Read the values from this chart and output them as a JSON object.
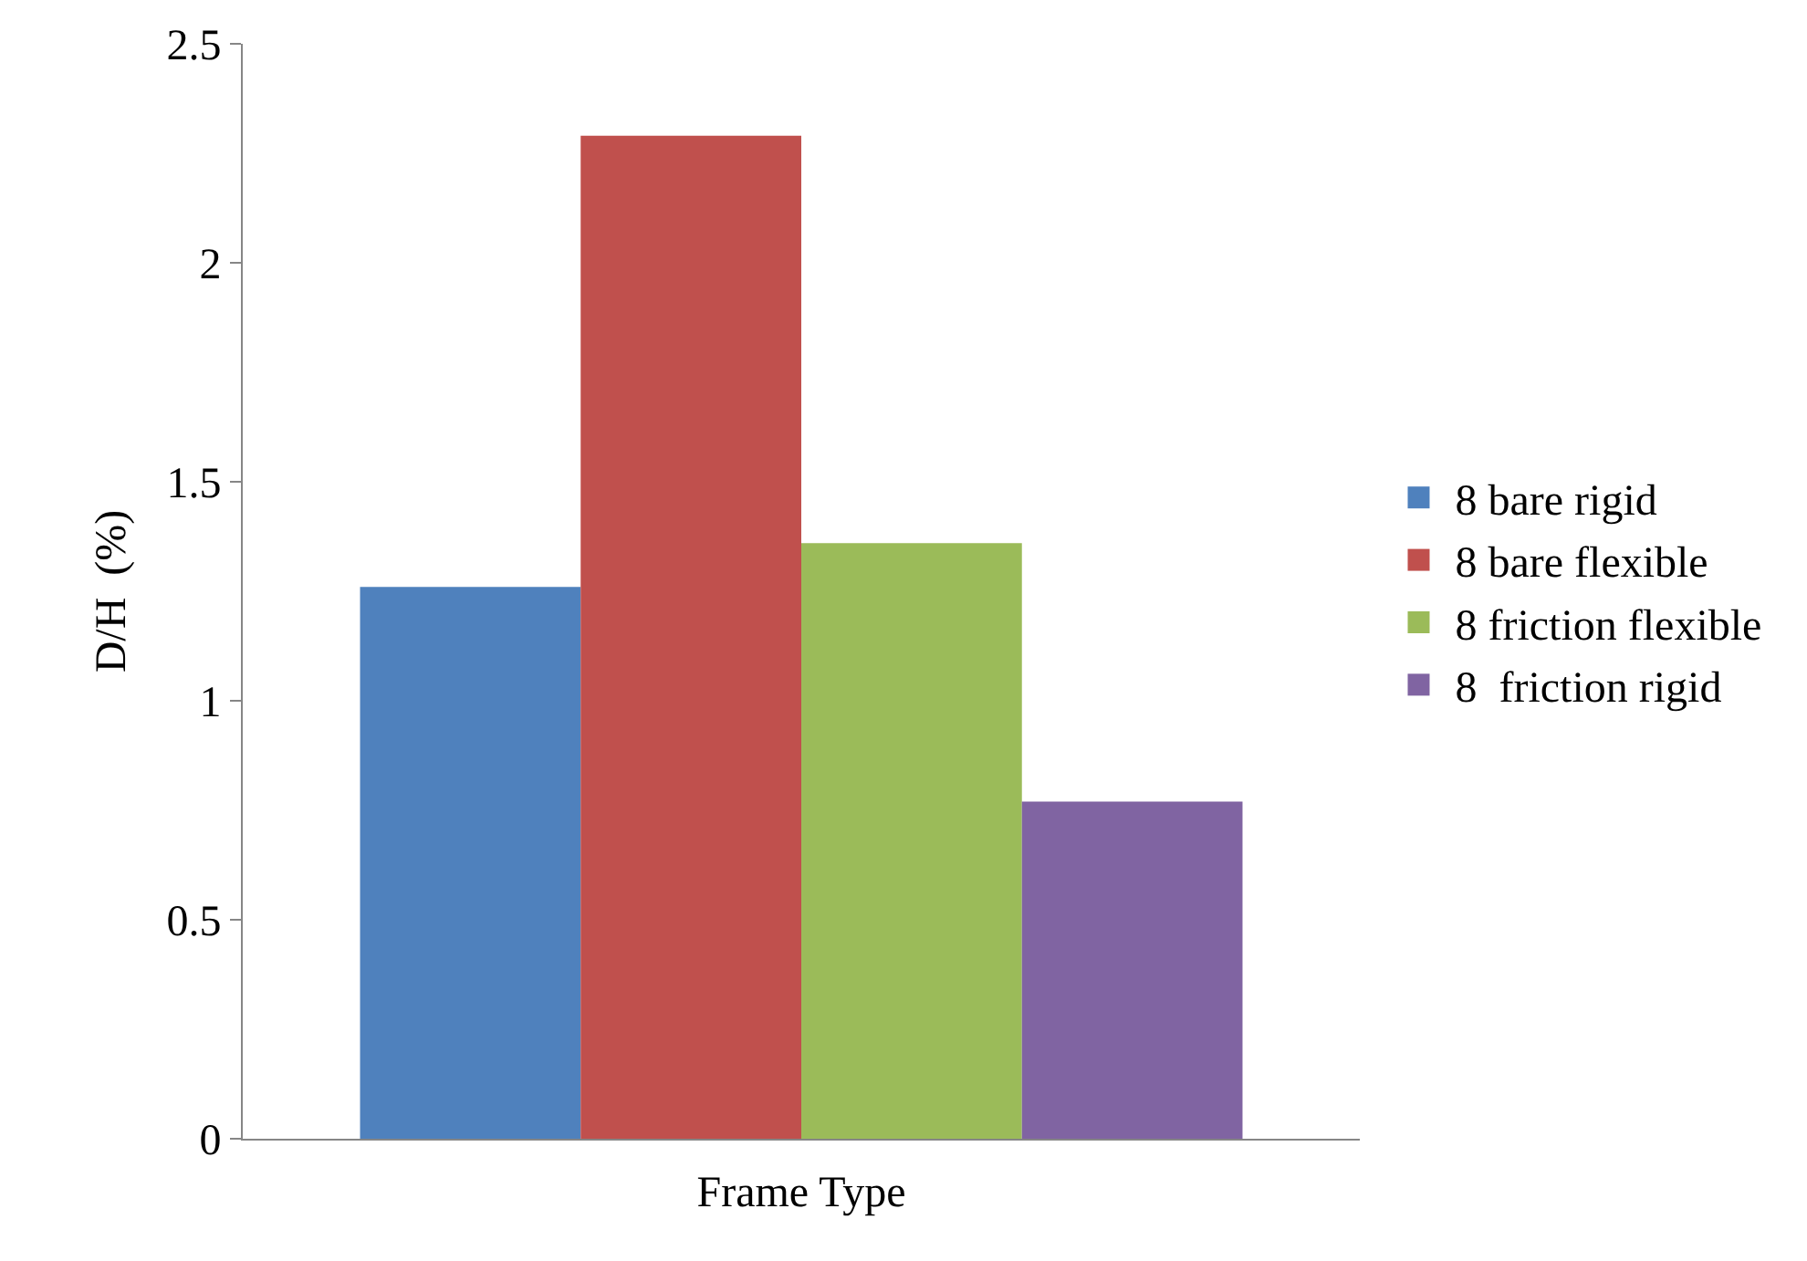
{
  "chart_data": {
    "type": "bar",
    "xlabel": "Frame Type",
    "ylabel": "D/H  (%)",
    "categories": [
      null
    ],
    "series": [
      {
        "name": "8 bare rigid",
        "color": "#4f81bd",
        "values": [
          1.26
        ]
      },
      {
        "name": "8 bare flexible",
        "color": "#c0504d",
        "values": [
          2.29
        ]
      },
      {
        "name": "8 friction flexible",
        "color": "#9bbb59",
        "values": [
          1.36
        ]
      },
      {
        "name": "8  friction rigid",
        "color": "#8064a2",
        "values": [
          0.77
        ]
      }
    ],
    "ylim": [
      0,
      2.5
    ],
    "yticks": [
      0,
      0.5,
      1,
      1.5,
      2,
      2.5
    ],
    "legend": "right"
  }
}
